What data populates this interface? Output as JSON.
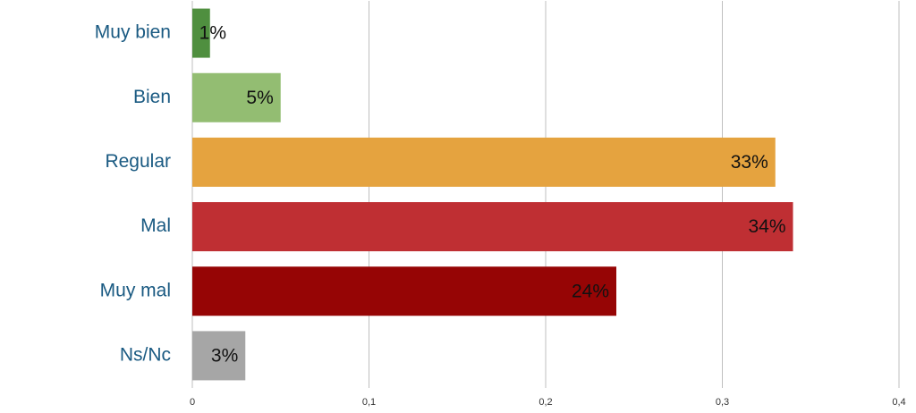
{
  "chart_data": {
    "type": "bar",
    "orientation": "horizontal",
    "categories": [
      "Muy bien",
      "Bien",
      "Regular",
      "Mal",
      "Muy mal",
      "Ns/Nc"
    ],
    "values": [
      0.01,
      0.05,
      0.33,
      0.34,
      0.24,
      0.03
    ],
    "value_labels": [
      "1%",
      "5%",
      "33%",
      "34%",
      "24%",
      "3%"
    ],
    "colors": [
      "#4f8f3f",
      "#93bd72",
      "#e5a33f",
      "#bf2f33",
      "#960505",
      "#a6a6a6"
    ],
    "xlim": [
      0,
      0.4
    ],
    "xticks": [
      0,
      {
        "value": 0.1,
        "label": "0,1"
      },
      {
        "value": 0.2,
        "label": "0,2"
      },
      {
        "value": 0.3,
        "label": "0,3"
      },
      {
        "value": 0.4,
        "label": "0,4"
      }
    ],
    "grid": true
  }
}
